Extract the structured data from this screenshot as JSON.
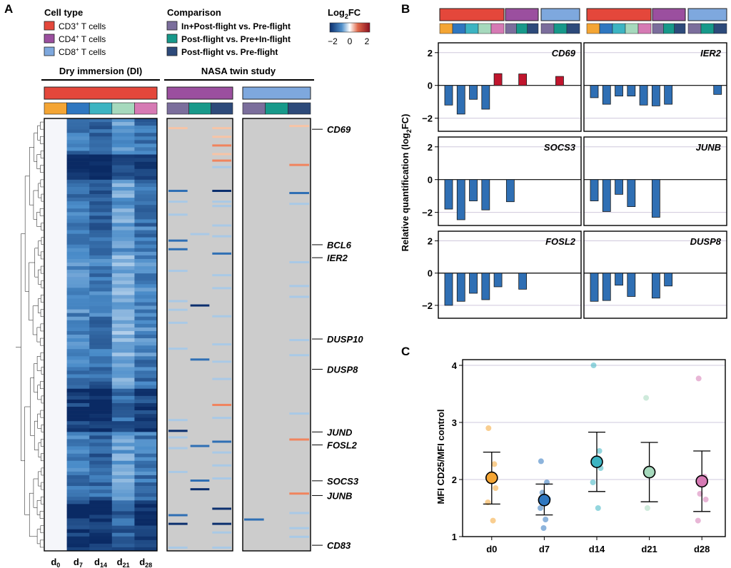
{
  "panels": {
    "a": "A",
    "b": "B",
    "c": "C"
  },
  "legend": {
    "cell_type_title": "Cell type",
    "cell_types": [
      {
        "label": "CD3",
        "sup": "+",
        "rest": " T cells",
        "color": "#e4473b"
      },
      {
        "label": "CD4",
        "sup": "+",
        "rest": " T cells",
        "color": "#9b4f9f"
      },
      {
        "label": "CD8",
        "sup": "+",
        "rest": " T cells",
        "color": "#7ea8de"
      }
    ],
    "comparison_title": "Comparison",
    "comparisons": [
      {
        "label": "In+Post-flight vs. Pre-flight",
        "color": "#7b6e9c"
      },
      {
        "label": "Post-flight vs. Pre+In-flight",
        "color": "#17998a"
      },
      {
        "label": "Post-flight vs. Pre-flight",
        "color": "#2d4a7a"
      }
    ],
    "colorbar_title": "Log",
    "colorbar_sub": "2",
    "colorbar_rest": "FC",
    "colorbar_ticks": [
      "−2",
      "0",
      "2"
    ],
    "colorbar_range": [
      -2,
      2
    ]
  },
  "day_colors": [
    "#f4a534",
    "#2f77c0",
    "#3cb4c2",
    "#a6d9bd",
    "#d67ab4"
  ],
  "heatmap": {
    "left_title": "Dry immersion (DI)",
    "right_title": "NASA twin study",
    "days": [
      {
        "base": "d",
        "sub": "0"
      },
      {
        "base": "d",
        "sub": "7"
      },
      {
        "base": "d",
        "sub": "14"
      },
      {
        "base": "d",
        "sub": "21"
      },
      {
        "base": "d",
        "sub": "28"
      }
    ],
    "gene_labels": [
      {
        "name": "CD69",
        "row_fraction": 0.025
      },
      {
        "name": "BCL6",
        "row_fraction": 0.292
      },
      {
        "name": "IER2",
        "row_fraction": 0.322
      },
      {
        "name": "DUSP10",
        "row_fraction": 0.51
      },
      {
        "name": "DUSP8",
        "row_fraction": 0.58
      },
      {
        "name": "JUND",
        "row_fraction": 0.725
      },
      {
        "name": "FOSL2",
        "row_fraction": 0.755
      },
      {
        "name": "SOCS3",
        "row_fraction": 0.838
      },
      {
        "name": "JUNB",
        "row_fraction": 0.872
      },
      {
        "name": "CD83",
        "row_fraction": 0.987
      }
    ]
  },
  "chart_data": [
    {
      "type": "bar",
      "panel": "B",
      "ylabel": "Relative quantification (log2FC)",
      "ylim": [
        -2.8,
        2.6
      ],
      "yticks": [
        -2,
        0,
        2
      ],
      "bar_groups": [
        "CD3+ d0",
        "CD3+ d7",
        "CD3+ d14",
        "CD3+ d21",
        "CD3+ d28",
        "CD4+ In+Post vs Pre",
        "CD4+ Post vs Pre+In",
        "CD4+ Post vs Pre",
        "CD8+ In+Post vs Pre",
        "CD8+ Post vs Pre+In",
        "CD8+ Post vs Pre"
      ],
      "genes": [
        {
          "name": "CD69",
          "values": [
            -1.2,
            -1.75,
            -0.85,
            -1.45,
            0.72,
            0,
            0.7,
            0,
            0,
            0.55,
            0
          ]
        },
        {
          "name": "IER2",
          "values": [
            -0.75,
            -1.15,
            -0.65,
            -0.65,
            -1.2,
            -1.25,
            -1.15,
            0,
            0,
            0,
            -0.55
          ]
        },
        {
          "name": "SOCS3",
          "values": [
            -1.8,
            -2.45,
            -1.3,
            -1.85,
            0,
            -1.35,
            0,
            0,
            0,
            0,
            0
          ]
        },
        {
          "name": "JUNB",
          "values": [
            -1.3,
            -1.95,
            -0.9,
            -1.65,
            0,
            -2.3,
            0,
            0,
            0,
            0,
            0
          ]
        },
        {
          "name": "FOSL2",
          "values": [
            -2.0,
            -1.75,
            -1.25,
            -1.65,
            -0.85,
            0,
            -1.0,
            0,
            0,
            0,
            0
          ]
        },
        {
          "name": "DUSP8",
          "values": [
            -1.75,
            -1.7,
            -0.75,
            -1.45,
            0,
            -1.55,
            -0.8,
            0,
            0,
            0,
            0
          ]
        }
      ]
    },
    {
      "type": "scatter",
      "panel": "C",
      "ylabel": "MFI CD25/MFI control",
      "ylim": [
        1,
        4.1
      ],
      "yticks": [
        1,
        2,
        3,
        4
      ],
      "categories": [
        "d0",
        "d7",
        "d14",
        "d21",
        "d28"
      ],
      "means": [
        2.03,
        1.64,
        2.31,
        2.13,
        1.97
      ],
      "error_low": [
        1.57,
        1.38,
        1.79,
        1.61,
        1.44
      ],
      "error_high": [
        2.48,
        1.92,
        2.83,
        2.65,
        2.5
      ],
      "points": [
        [
          2.9,
          2.27,
          2.05,
          1.85,
          1.6,
          1.28
        ],
        [
          2.32,
          1.95,
          1.77,
          1.66,
          1.5,
          1.3,
          1.15
        ],
        [
          4.0,
          2.5,
          2.35,
          2.2,
          1.95,
          1.5
        ],
        [
          3.43,
          2.1,
          1.5
        ],
        [
          3.77,
          2.05,
          1.75,
          1.65,
          1.28
        ]
      ],
      "colors": [
        "#f4a534",
        "#2f77c0",
        "#3cb4c2",
        "#a6d9bd",
        "#d67ab4"
      ]
    }
  ]
}
